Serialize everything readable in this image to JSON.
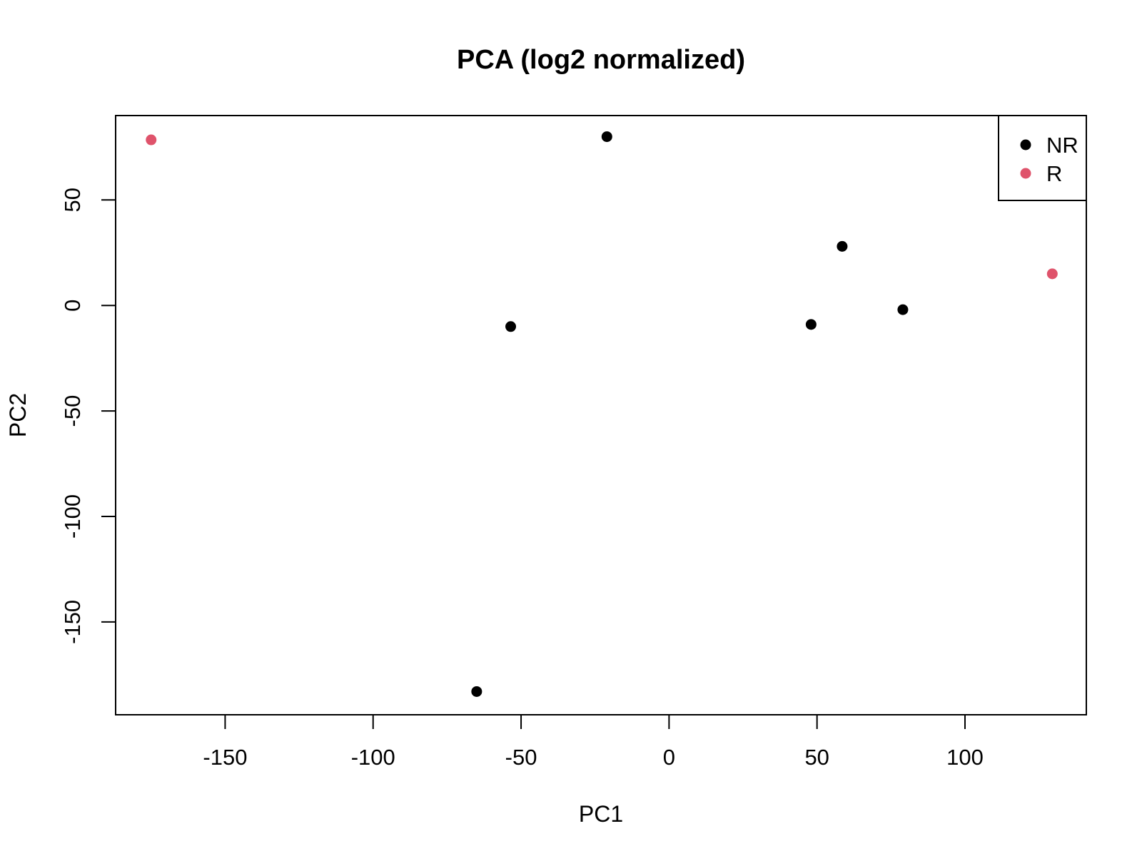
{
  "chart_data": {
    "type": "scatter",
    "title": "PCA (log2 normalized)",
    "xlabel": "PC1",
    "ylabel": "PC2",
    "xlim": [
      -187,
      141
    ],
    "ylim": [
      -194,
      90
    ],
    "xticks": [
      -150,
      -100,
      -50,
      0,
      50,
      100
    ],
    "yticks": [
      -150,
      -100,
      -50,
      0,
      50
    ],
    "grid": false,
    "legend_position": "top-right",
    "series": [
      {
        "name": "NR",
        "color": "#000000",
        "points": [
          {
            "x": -21,
            "y": 80
          },
          {
            "x": -53.5,
            "y": -10
          },
          {
            "x": -65,
            "y": -183
          },
          {
            "x": 48,
            "y": -9
          },
          {
            "x": 58.5,
            "y": 28
          },
          {
            "x": 79,
            "y": -2
          }
        ]
      },
      {
        "name": "R",
        "color": "#DF536B",
        "points": [
          {
            "x": -175,
            "y": 78.5
          },
          {
            "x": 129.5,
            "y": 15
          }
        ]
      }
    ]
  }
}
